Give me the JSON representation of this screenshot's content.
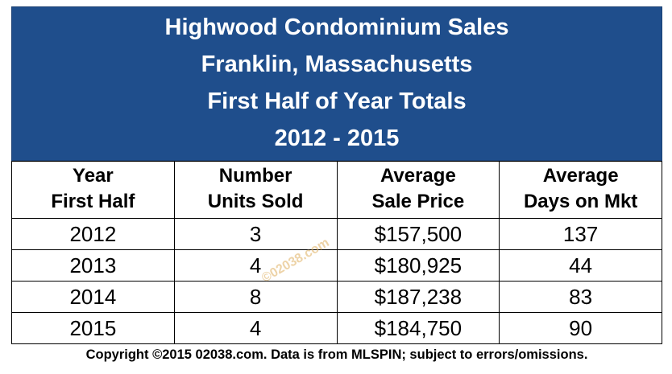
{
  "chart_data": {
    "type": "table",
    "title_lines": [
      "Highwood Condominium Sales",
      "Franklin, Massachusetts",
      "First Half of Year Totals",
      "2012 - 2015"
    ],
    "columns": [
      {
        "line1": "Year",
        "line2": "First Half"
      },
      {
        "line1": "Number",
        "line2": "Units Sold"
      },
      {
        "line1": "Average",
        "line2": "Sale Price"
      },
      {
        "line1": "Average",
        "line2": "Days on Mkt"
      }
    ],
    "rows": [
      [
        "2012",
        "3",
        "$157,500",
        "137"
      ],
      [
        "2013",
        "4",
        "$180,925",
        "44"
      ],
      [
        "2014",
        "8",
        "$187,238",
        "83"
      ],
      [
        "2015",
        "4",
        "$184,750",
        "90"
      ]
    ]
  },
  "watermark": "©02038.com",
  "footer": "Copyright ©2015 02038.com.  Data is from MLSPIN; subject to errors/omissions.",
  "colors": {
    "header_bg": "#1f4e8c",
    "header_text": "#ffffff",
    "watermark": "#e0b060"
  }
}
